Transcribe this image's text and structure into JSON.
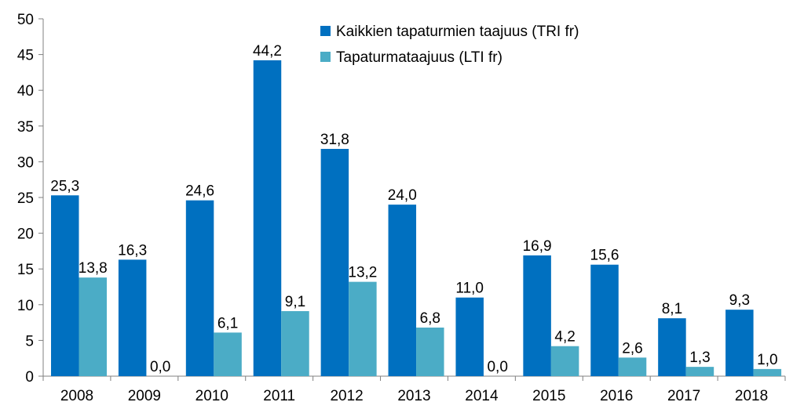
{
  "chart_data": {
    "type": "bar",
    "title": "",
    "xlabel": "",
    "ylabel": "",
    "categories": [
      "2008",
      "2009",
      "2010",
      "2011",
      "2012",
      "2013",
      "2014",
      "2015",
      "2016",
      "2017",
      "2018"
    ],
    "series": [
      {
        "name": "Kaikkien tapaturmien taajuus (TRI fr)",
        "color": "#0070C0",
        "values": [
          25.3,
          16.3,
          24.6,
          44.2,
          31.8,
          24.0,
          11.0,
          16.9,
          15.6,
          8.1,
          9.3
        ],
        "labels": [
          "25,3",
          "16,3",
          "24,6",
          "44,2",
          "31,8",
          "24,0",
          "11,0",
          "16,9",
          "15,6",
          "8,1",
          "9,3"
        ]
      },
      {
        "name": "Tapaturmataajuus (LTI fr)",
        "color": "#4BACC6",
        "values": [
          13.8,
          0.0,
          6.1,
          9.1,
          13.2,
          6.8,
          0.0,
          4.2,
          2.6,
          1.3,
          1.0
        ],
        "labels": [
          "13,8",
          "0,0",
          "6,1",
          "9,1",
          "13,2",
          "6,8",
          "0,0",
          "4,2",
          "2,6",
          "1,3",
          "1,0"
        ]
      }
    ],
    "ylim": [
      0,
      50
    ],
    "yticks": [
      "0",
      "5",
      "10",
      "15",
      "20",
      "25",
      "30",
      "35",
      "40",
      "45",
      "50"
    ],
    "grid": false,
    "legend_position": "top-center"
  }
}
